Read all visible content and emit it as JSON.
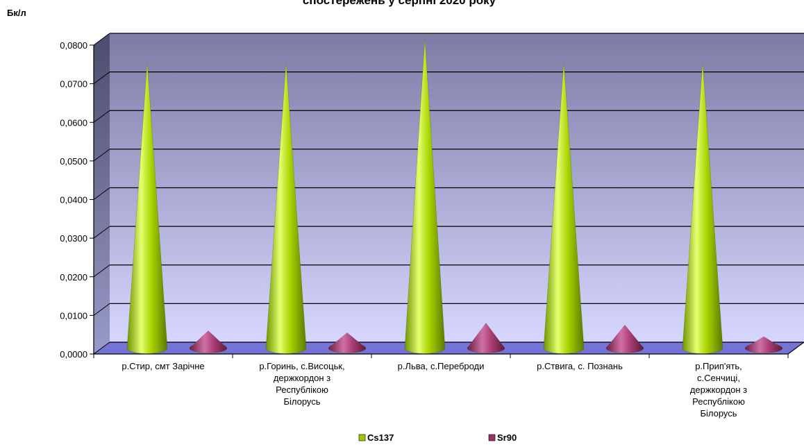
{
  "chart_data": {
    "type": "bar",
    "title": "спостережень у серпні 2020 року",
    "ylabel": "Бк/л",
    "ylim": [
      0,
      0.08
    ],
    "yticks": [
      "0,0000",
      "0,0100",
      "0,0200",
      "0,0300",
      "0,0400",
      "0,0500",
      "0,0600",
      "0,0700",
      "0,0800"
    ],
    "categories": [
      [
        "р.Стир, смт Зарічне"
      ],
      [
        "р.Горинь, с.Висоцьк,",
        "держкордон з",
        "Республікою",
        "Білорусь"
      ],
      [
        "р.Льва, с.Переброди"
      ],
      [
        "р.Ствига, с. Познань"
      ],
      [
        "р.Прип'ять,",
        "с.Сенчиці,",
        "держкордон з",
        "Республікою",
        "Білорусь"
      ]
    ],
    "series": [
      {
        "name": "Cs137",
        "values": [
          0.074,
          0.074,
          0.08,
          0.074,
          0.074
        ]
      },
      {
        "name": "Sr90",
        "values": [
          0.0045,
          0.004,
          0.0065,
          0.006,
          0.003
        ]
      }
    ],
    "grid": true,
    "legend_position": "bottom"
  },
  "colors": {
    "cs137": "#99cc00",
    "sr90": "#993366",
    "wall_top": "#8080a8",
    "wall_bottom": "#d4d4ff",
    "floor": "#7373d8"
  }
}
